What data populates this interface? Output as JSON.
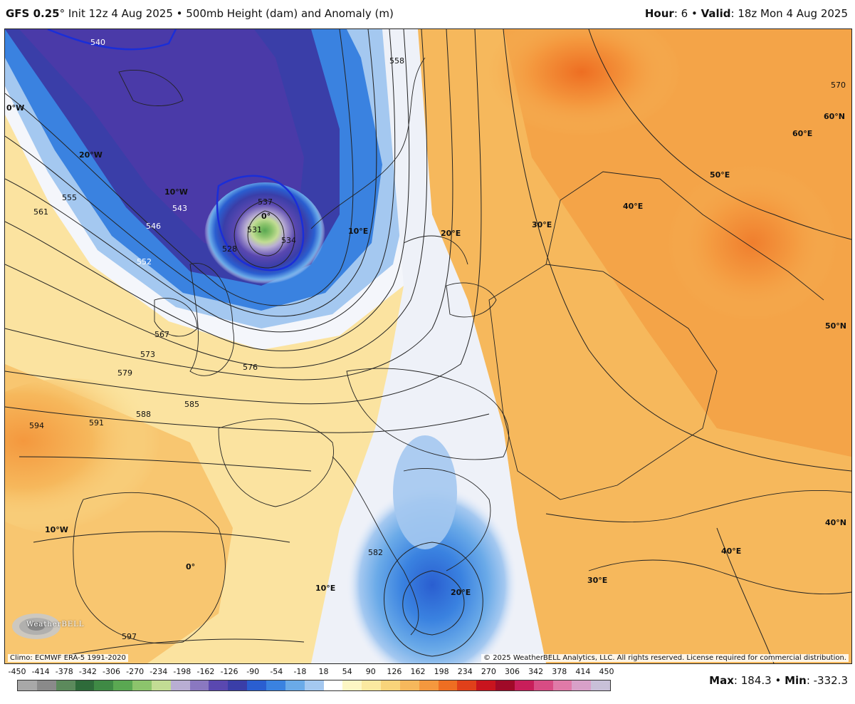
{
  "header": {
    "model": "GFS 0.25",
    "degree": "°",
    "rest": " Init 12z 4 Aug 2025 • 500mb Height (dam) and Anomaly (m)",
    "hour_label": "Hour",
    "hour_value": ": 6 • ",
    "valid_label": "Valid",
    "valid_value": ": 18z Mon 4 Aug 2025"
  },
  "map": {
    "contour_labels": [
      "540",
      "543",
      "546",
      "552",
      "555",
      "561",
      "567",
      "573",
      "579",
      "585",
      "588",
      "591",
      "594",
      "597",
      "537",
      "534",
      "531",
      "528",
      "576",
      "558",
      "570",
      "582"
    ],
    "coord_labels": {
      "w0_top": "0°W",
      "w20": "20°W",
      "w10": "10°W",
      "e10": "10°E",
      "e20": "20°E",
      "e30": "30°E",
      "e40": "40°E",
      "e50": "50°E",
      "e60": "60°E",
      "n60": "60°N",
      "n50": "50°N",
      "n40": "40°N",
      "zero_center": "0°",
      "zero_south": "0°",
      "w10_south": "10°W",
      "e10_south": "10°E",
      "e20_south": "20°E",
      "e30_south": "30°E",
      "e40_south": "40°E"
    },
    "clim_note": "Climo: ECMWF ERA-5 1991-2020",
    "copyright": "© 2025 WeatherBELL Analytics, LLC. All rights reserved. License required for commercial distribution.",
    "logo_text": "WeatherBELL"
  },
  "colorbar": {
    "labels": [
      "-450",
      "-414",
      "-378",
      "-342",
      "-306",
      "-270",
      "-234",
      "-198",
      "-162",
      "-126",
      "-90",
      "-54",
      "-18",
      "18",
      "54",
      "90",
      "126",
      "162",
      "198",
      "234",
      "270",
      "306",
      "342",
      "378",
      "414",
      "450"
    ],
    "colors": [
      "#a8a8a8",
      "#8a8a8a",
      "#5c8a5c",
      "#2e6b3a",
      "#3f8a45",
      "#5aa852",
      "#8cc46c",
      "#c2dc94",
      "#b9aed3",
      "#8a78c0",
      "#5a48b0",
      "#3a3ea8",
      "#2a5ed0",
      "#3a82e0",
      "#6aaae8",
      "#a4c8f0",
      "#ffffff",
      "#fdf6c4",
      "#fbe9a0",
      "#f8d47a",
      "#f6b85c",
      "#f4983e",
      "#ee6e22",
      "#e0401a",
      "#c8141e",
      "#a00a28",
      "#c81e5a",
      "#d84c84",
      "#e07aa8",
      "#d8a0c8",
      "#c8c0d8"
    ]
  },
  "maxmin": {
    "max_label": "Max",
    "max_value": ": 184.3 • ",
    "min_label": "Min",
    "min_value": ": -332.3"
  }
}
